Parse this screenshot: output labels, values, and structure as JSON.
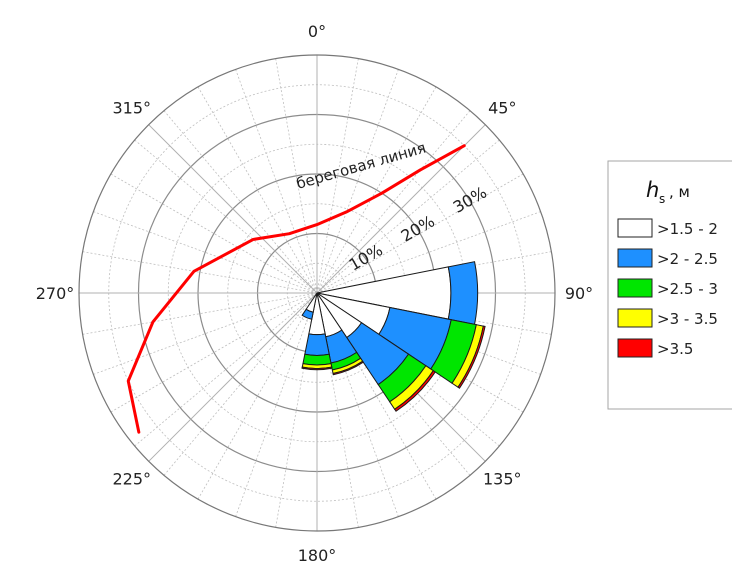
{
  "chart_data": {
    "type": "polar-stacked-bar",
    "directions": [
      {
        "label": "0°",
        "deg": 0
      },
      {
        "label": "45°",
        "deg": 45
      },
      {
        "label": "90°",
        "deg": 90
      },
      {
        "label": "135°",
        "deg": 135
      },
      {
        "label": "180°",
        "deg": 180
      },
      {
        "label": "225°",
        "deg": 225
      },
      {
        "label": "270°",
        "deg": 270
      },
      {
        "label": "315°",
        "deg": 315
      }
    ],
    "rings": [
      {
        "label": "10%",
        "value": 10
      },
      {
        "label": "20%",
        "value": 20
      },
      {
        "label": "30%",
        "value": 30
      }
    ],
    "rmax": 40,
    "sector_width_deg": 22.5,
    "sector_centers_deg": [
      90,
      112.5,
      135,
      157.5,
      180,
      202.5,
      225
    ],
    "series": [
      {
        "name": ">1.5 - 2",
        "color": "#ffffff",
        "values": [
          22.5,
          12.5,
          9,
          7.5,
          7,
          3.3,
          0
        ]
      },
      {
        "name": ">2 - 2.5",
        "color": "#1e90ff",
        "values": [
          4.5,
          10.5,
          9.5,
          4.5,
          3.5,
          1.2,
          0
        ]
      },
      {
        "name": ">2.5 - 3",
        "color": "#00e600",
        "values": [
          0,
          4.3,
          3.5,
          1.2,
          1.6,
          0,
          0
        ]
      },
      {
        "name": ">3 - 3.5",
        "color": "#ffff00",
        "values": [
          0,
          1.2,
          1.5,
          0.6,
          0.6,
          0,
          0
        ]
      },
      {
        "name": ">3.5",
        "color": "#ff0000",
        "values": [
          0,
          0.3,
          0.4,
          0.2,
          0.2,
          0,
          0
        ]
      }
    ],
    "legend": {
      "title": "h",
      "title_sub": "s",
      "unit": ", м",
      "placement": "right"
    },
    "annotation": {
      "text": "береговая линия",
      "color": "#ff0000",
      "line_points": [
        {
          "deg": 45,
          "r": 35
        },
        {
          "deg": 40,
          "r": 27
        },
        {
          "deg": 33,
          "r": 20
        },
        {
          "deg": 20,
          "r": 14.5
        },
        {
          "deg": 0,
          "r": 11.5
        },
        {
          "deg": -25,
          "r": 11
        },
        {
          "deg": -50,
          "r": 14
        },
        {
          "deg": -80,
          "r": 21
        },
        {
          "deg": -100,
          "r": 28
        },
        {
          "deg": -115,
          "r": 35
        },
        {
          "deg": -128,
          "r": 38
        }
      ]
    }
  }
}
